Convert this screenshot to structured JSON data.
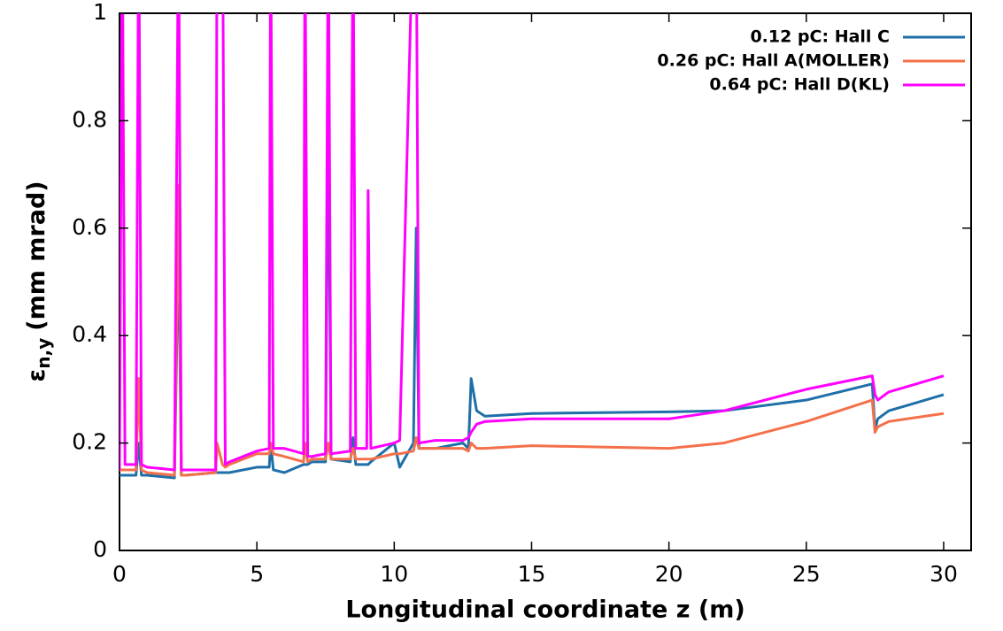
{
  "chart_data": {
    "type": "line",
    "xlabel": "Longitudinal coordinate z (m)",
    "ylabel": {
      "symbol": "ε",
      "subscript": "n,y",
      "unit": "(mm mrad)"
    },
    "x": [
      0,
      0.1,
      0.2,
      0.6,
      0.7,
      0.8,
      1,
      2,
      2.15,
      2.25,
      2.4,
      3.5,
      3.55,
      3.75,
      3.85,
      4,
      5,
      5.45,
      5.5,
      5.6,
      6,
      6.7,
      6.75,
      6.85,
      7,
      7.5,
      7.6,
      7.7,
      8.4,
      8.5,
      8.6,
      9,
      9.05,
      9.15,
      10,
      10.2,
      10.7,
      10.8,
      10.9,
      11.5,
      12.5,
      12.7,
      12.8,
      13,
      13.3,
      15,
      20,
      22,
      25,
      27.4,
      27.5,
      27.6,
      28,
      30
    ],
    "series": [
      {
        "name": "0.12 pC: Hall C",
        "color": "#1f6fa8",
        "values": [
          0.14,
          0.14,
          0.14,
          0.14,
          0.2,
          0.14,
          0.14,
          0.135,
          0.58,
          0.14,
          0.14,
          0.145,
          0.145,
          0.145,
          0.145,
          0.145,
          0.155,
          0.155,
          0.2,
          0.15,
          0.145,
          0.16,
          0.16,
          0.16,
          0.165,
          0.165,
          0.84,
          0.17,
          0.165,
          0.21,
          0.16,
          0.16,
          0.16,
          0.165,
          0.2,
          0.155,
          0.2,
          0.6,
          0.19,
          0.19,
          0.2,
          0.19,
          0.32,
          0.26,
          0.25,
          0.255,
          0.258,
          0.26,
          0.28,
          0.31,
          0.225,
          0.245,
          0.26,
          0.29
        ]
      },
      {
        "name": "0.26 pC: Hall A(MOLLER)",
        "color": "#f4704a",
        "values": [
          0.15,
          0.15,
          0.15,
          0.15,
          0.32,
          0.15,
          0.145,
          0.14,
          0.68,
          0.14,
          0.14,
          0.145,
          0.2,
          0.16,
          0.155,
          0.16,
          0.18,
          0.18,
          0.2,
          0.18,
          0.175,
          0.165,
          0.2,
          0.165,
          0.17,
          0.17,
          0.2,
          0.17,
          0.17,
          0.19,
          0.17,
          0.17,
          0.17,
          0.17,
          0.18,
          0.18,
          0.185,
          0.21,
          0.19,
          0.19,
          0.19,
          0.185,
          0.2,
          0.19,
          0.19,
          0.195,
          0.19,
          0.2,
          0.24,
          0.28,
          0.22,
          0.23,
          0.24,
          0.255
        ]
      },
      {
        "name": "0.64 pC: Hall D(KL)",
        "color": "#ff00ff",
        "values": [
          0.15,
          1.2,
          0.16,
          0.16,
          1.2,
          0.16,
          0.155,
          0.15,
          1.2,
          0.15,
          0.15,
          0.15,
          1.2,
          1.2,
          0.16,
          0.165,
          0.185,
          0.19,
          1.2,
          0.19,
          0.19,
          0.18,
          1.2,
          0.175,
          0.175,
          0.18,
          1.2,
          0.18,
          0.185,
          1.2,
          0.19,
          0.19,
          0.67,
          0.19,
          0.2,
          0.205,
          1.2,
          1.2,
          0.2,
          0.205,
          0.205,
          0.21,
          0.22,
          0.235,
          0.24,
          0.245,
          0.245,
          0.26,
          0.3,
          0.325,
          0.29,
          0.28,
          0.295,
          0.325
        ]
      }
    ],
    "xlim": [
      0,
      31
    ],
    "ylim": [
      0,
      1
    ],
    "xticks": [
      0,
      5,
      10,
      15,
      20,
      25,
      30
    ],
    "yticks": [
      0,
      0.2,
      0.4,
      0.6,
      0.8,
      1
    ],
    "legend": "upper right"
  }
}
